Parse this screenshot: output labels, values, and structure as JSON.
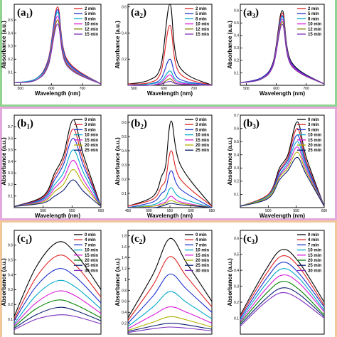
{
  "groups": [
    {
      "id": "a",
      "frame_color": "#8fd48f"
    },
    {
      "id": "b",
      "frame_color": "#e3a9dd"
    },
    {
      "id": "c",
      "frame_color": "#f2c89a"
    }
  ],
  "chart_data": [
    {
      "panel_label": "(a",
      "panel_sub": "1",
      "type": "line",
      "xlabel": "Wavelength (nm)",
      "ylabel": "Absorbance (a.u.)",
      "xlim": [
        480,
        760
      ],
      "ylim": [
        0,
        0.62
      ],
      "xticks": [
        500,
        600,
        700
      ],
      "yticks": [
        0.1,
        0.2,
        0.3,
        0.4,
        0.5
      ],
      "series": [
        {
          "name": "2 min",
          "color": "#e02020",
          "values": [
            0.02,
            0.05,
            0.2,
            0.6,
            0.2,
            0.01
          ]
        },
        {
          "name": "5 min",
          "color": "#1a2fd0",
          "values": [
            0.02,
            0.05,
            0.19,
            0.58,
            0.19,
            0.01
          ]
        },
        {
          "name": "8 min",
          "color": "#00a8cc",
          "values": [
            0.02,
            0.05,
            0.18,
            0.56,
            0.18,
            0.01
          ]
        },
        {
          "name": "10 min",
          "color": "#d81bd8",
          "values": [
            0.02,
            0.04,
            0.17,
            0.53,
            0.17,
            0.01
          ]
        },
        {
          "name": "12 min",
          "color": "#808000",
          "values": [
            0.02,
            0.04,
            0.16,
            0.5,
            0.16,
            0.01
          ]
        },
        {
          "name": "15 min",
          "color": "#7b2fbe",
          "values": [
            0.02,
            0.04,
            0.15,
            0.47,
            0.15,
            0.01
          ]
        }
      ],
      "x": [
        480,
        550,
        590,
        620,
        650,
        760
      ]
    },
    {
      "panel_label": "(a",
      "panel_sub": "2",
      "type": "line",
      "xlabel": "Wavelength (nm)",
      "ylabel": "Absorbance (a.u.)",
      "xlim": [
        480,
        760
      ],
      "ylim": [
        0,
        0.62
      ],
      "xticks": [
        500,
        600,
        700
      ],
      "yticks": [
        0.2,
        0.4,
        0.6
      ],
      "series": [
        {
          "name": "2 min",
          "color": "#e02020",
          "values": [
            0.01,
            0.02,
            0.1,
            0.46,
            0.1,
            0.0
          ]
        },
        {
          "name": "5 min",
          "color": "#1a2fd0",
          "values": [
            0.0,
            0.01,
            0.05,
            0.2,
            0.05,
            0.0
          ]
        },
        {
          "name": "8 min",
          "color": "#00a8cc",
          "values": [
            0.0,
            0.01,
            0.03,
            0.11,
            0.03,
            0.0
          ]
        },
        {
          "name": "10 min",
          "color": "#d81bd8",
          "values": [
            0.0,
            0.0,
            0.02,
            0.08,
            0.02,
            0.0
          ]
        },
        {
          "name": "12 min",
          "color": "#808000",
          "values": [
            0.0,
            0.0,
            0.01,
            0.05,
            0.01,
            0.0
          ]
        },
        {
          "name": "15 min",
          "color": "#7b2fbe",
          "values": [
            0.0,
            0.0,
            0.01,
            0.03,
            0.01,
            0.0
          ]
        }
      ],
      "extra_series": {
        "color": "#000000",
        "values": [
          0.01,
          0.04,
          0.15,
          0.62,
          0.15,
          0.0
        ]
      },
      "x": [
        480,
        550,
        590,
        620,
        650,
        760
      ]
    },
    {
      "panel_label": "(a",
      "panel_sub": "3",
      "type": "line",
      "xlabel": "Wavelength (nm)",
      "ylabel": "Absorbance (a.u.)",
      "xlim": [
        480,
        760
      ],
      "ylim": [
        0,
        0.65
      ],
      "xticks": [
        500,
        600,
        700
      ],
      "yticks": [
        0.1,
        0.2,
        0.3,
        0.4,
        0.5,
        0.6
      ],
      "series": [
        {
          "name": "2 min",
          "color": "#e02020",
          "values": [
            0.02,
            0.06,
            0.18,
            0.58,
            0.18,
            0.01
          ]
        },
        {
          "name": "5 min",
          "color": "#1a2fd0",
          "values": [
            0.02,
            0.06,
            0.18,
            0.56,
            0.18,
            0.01
          ]
        },
        {
          "name": "8 min",
          "color": "#00a8cc",
          "values": [
            0.02,
            0.05,
            0.17,
            0.55,
            0.17,
            0.01
          ]
        },
        {
          "name": "10 min",
          "color": "#d81bd8",
          "values": [
            0.02,
            0.05,
            0.17,
            0.53,
            0.17,
            0.01
          ]
        },
        {
          "name": "12 min",
          "color": "#808000",
          "values": [
            0.02,
            0.05,
            0.16,
            0.51,
            0.16,
            0.01
          ]
        },
        {
          "name": "15 min",
          "color": "#7b2fbe",
          "values": [
            0.02,
            0.05,
            0.16,
            0.49,
            0.16,
            0.01
          ]
        }
      ],
      "extra_series": {
        "color": "#000000",
        "values": [
          0.02,
          0.06,
          0.19,
          0.6,
          0.19,
          0.01
        ]
      },
      "x": [
        480,
        550,
        590,
        620,
        650,
        760
      ]
    },
    {
      "panel_label": "(b",
      "panel_sub": "1",
      "type": "line",
      "xlabel": "Wavelength (nm)",
      "ylabel": "Absorbance (a.u.)",
      "xlim": [
        450,
        600
      ],
      "ylim": [
        0,
        0.8
      ],
      "xticks": [
        500,
        550,
        600
      ],
      "yticks": [
        0.1,
        0.2,
        0.3,
        0.4,
        0.5,
        0.6,
        0.7
      ],
      "series": [
        {
          "name": "0 min",
          "color": "#000000",
          "values": [
            0.01,
            0.1,
            0.3,
            0.45,
            0.76,
            0.45,
            0.01
          ]
        },
        {
          "name": "3 min",
          "color": "#e02020",
          "values": [
            0.01,
            0.09,
            0.27,
            0.41,
            0.68,
            0.4,
            0.01
          ]
        },
        {
          "name": "5 min",
          "color": "#1a2fd0",
          "values": [
            0.01,
            0.08,
            0.24,
            0.37,
            0.6,
            0.36,
            0.01
          ]
        },
        {
          "name": "10 min",
          "color": "#00a8cc",
          "values": [
            0.01,
            0.07,
            0.2,
            0.3,
            0.5,
            0.3,
            0.01
          ]
        },
        {
          "name": "15 min",
          "color": "#d81bd8",
          "values": [
            0.01,
            0.06,
            0.17,
            0.25,
            0.41,
            0.24,
            0.01
          ]
        },
        {
          "name": "20 min",
          "color": "#b0b000",
          "values": [
            0.01,
            0.05,
            0.14,
            0.2,
            0.33,
            0.2,
            0.01
          ]
        },
        {
          "name": "25 min",
          "color": "#0b1c6e",
          "values": [
            0.01,
            0.04,
            0.1,
            0.15,
            0.24,
            0.14,
            0.01
          ]
        }
      ],
      "x": [
        450,
        500,
        520,
        535,
        552,
        570,
        600
      ]
    },
    {
      "panel_label": "(b",
      "panel_sub": "2",
      "type": "line",
      "xlabel": "Wavelength (nm)",
      "ylabel": "Absorbance (a.u.)",
      "xlim": [
        450,
        650
      ],
      "ylim": [
        0,
        0.65
      ],
      "xticks": [
        450,
        500,
        550,
        600,
        650
      ],
      "yticks": [
        0.1,
        0.2,
        0.3,
        0.4,
        0.5,
        0.6
      ],
      "series": [
        {
          "name": "0 min",
          "color": "#000000",
          "values": [
            0.01,
            0.08,
            0.22,
            0.3,
            0.61,
            0.3,
            0.01
          ]
        },
        {
          "name": "3 min",
          "color": "#e02020",
          "values": [
            0.01,
            0.06,
            0.15,
            0.2,
            0.4,
            0.2,
            0.01
          ]
        },
        {
          "name": "5 min",
          "color": "#1a2fd0",
          "values": [
            0.0,
            0.04,
            0.1,
            0.13,
            0.26,
            0.13,
            0.0
          ]
        },
        {
          "name": "10 min",
          "color": "#00a8cc",
          "values": [
            0.0,
            0.02,
            0.05,
            0.07,
            0.14,
            0.07,
            0.0
          ]
        },
        {
          "name": "15 min",
          "color": "#d81bd8",
          "values": [
            0.0,
            0.01,
            0.03,
            0.04,
            0.08,
            0.04,
            0.0
          ]
        },
        {
          "name": "20 min",
          "color": "#b0b000",
          "values": [
            0.0,
            0.01,
            0.02,
            0.03,
            0.05,
            0.03,
            0.0
          ]
        },
        {
          "name": "25 min",
          "color": "#0b1c6e",
          "values": [
            0.0,
            0.0,
            0.01,
            0.02,
            0.03,
            0.02,
            0.0
          ]
        }
      ],
      "x": [
        450,
        510,
        530,
        540,
        553,
        575,
        650
      ]
    },
    {
      "panel_label": "(b",
      "panel_sub": "3",
      "type": "line",
      "xlabel": "Wavelength (nm)",
      "ylabel": "Absorbance (a.u.)",
      "xlim": [
        450,
        600
      ],
      "ylim": [
        0,
        0.7
      ],
      "xticks": [
        500,
        550,
        600
      ],
      "yticks": [
        0.1,
        0.2,
        0.3,
        0.4,
        0.5,
        0.6,
        0.7
      ],
      "series": [
        {
          "name": "0 min",
          "color": "#000000",
          "values": [
            0.01,
            0.1,
            0.3,
            0.4,
            0.65,
            0.38,
            0.01
          ]
        },
        {
          "name": "3 min",
          "color": "#e02020",
          "values": [
            0.01,
            0.1,
            0.28,
            0.38,
            0.6,
            0.35,
            0.01
          ]
        },
        {
          "name": "5 min",
          "color": "#1a2fd0",
          "values": [
            0.01,
            0.09,
            0.27,
            0.36,
            0.55,
            0.33,
            0.01
          ]
        },
        {
          "name": "10 min",
          "color": "#00a8cc",
          "values": [
            0.01,
            0.09,
            0.25,
            0.34,
            0.5,
            0.31,
            0.01
          ]
        },
        {
          "name": "15 min",
          "color": "#d81bd8",
          "values": [
            0.01,
            0.08,
            0.24,
            0.32,
            0.46,
            0.29,
            0.01
          ]
        },
        {
          "name": "20 min",
          "color": "#b0b000",
          "values": [
            0.01,
            0.08,
            0.23,
            0.3,
            0.42,
            0.27,
            0.01
          ]
        },
        {
          "name": "25 min",
          "color": "#0b1c6e",
          "values": [
            0.01,
            0.07,
            0.21,
            0.28,
            0.38,
            0.25,
            0.01
          ]
        }
      ],
      "x": [
        450,
        500,
        520,
        535,
        552,
        568,
        600
      ]
    },
    {
      "panel_label": "(c",
      "panel_sub": "1",
      "type": "line",
      "xlabel": "",
      "ylabel": "Absorbance (a.u.)",
      "xlim": [
        0,
        1
      ],
      "ylim": [
        0,
        0.7
      ],
      "xticks": [],
      "yticks": [
        0.1,
        0.2,
        0.3,
        0.4,
        0.5,
        0.6
      ],
      "series": [
        {
          "name": "0 min",
          "color": "#000000",
          "values": [
            0.12,
            0.45,
            0.62,
            0.55,
            0.3
          ]
        },
        {
          "name": "4 min",
          "color": "#e02020",
          "values": [
            0.1,
            0.38,
            0.53,
            0.47,
            0.25
          ]
        },
        {
          "name": "7 min",
          "color": "#1a2fd0",
          "values": [
            0.09,
            0.32,
            0.44,
            0.39,
            0.21
          ]
        },
        {
          "name": "10 min",
          "color": "#00a8cc",
          "values": [
            0.07,
            0.26,
            0.36,
            0.32,
            0.17
          ]
        },
        {
          "name": "15 min",
          "color": "#d81bd8",
          "values": [
            0.06,
            0.21,
            0.29,
            0.26,
            0.14
          ]
        },
        {
          "name": "20 min",
          "color": "#008000",
          "values": [
            0.05,
            0.17,
            0.23,
            0.2,
            0.11
          ]
        },
        {
          "name": "25 min",
          "color": "#0b1c6e",
          "values": [
            0.04,
            0.13,
            0.18,
            0.16,
            0.09
          ]
        },
        {
          "name": "30 min",
          "color": "#7b2fbe",
          "values": [
            0.03,
            0.1,
            0.13,
            0.12,
            0.07
          ]
        }
      ],
      "x": [
        0.0,
        0.25,
        0.5,
        0.7,
        1.0
      ]
    },
    {
      "panel_label": "(c",
      "panel_sub": "2",
      "type": "line",
      "xlabel": "",
      "ylabel": "Absorbance (a.u.)",
      "xlim": [
        0,
        1
      ],
      "ylim": [
        0,
        1.9
      ],
      "xticks": [],
      "yticks": [
        0.2,
        0.4,
        0.6,
        0.8,
        1.0,
        1.2,
        1.4,
        1.6,
        1.8
      ],
      "series": [
        {
          "name": "0 min",
          "color": "#000000",
          "values": [
            0.3,
            1.1,
            1.75,
            1.3,
            0.6
          ]
        },
        {
          "name": "4 min",
          "color": "#e02020",
          "values": [
            0.25,
            0.9,
            1.42,
            1.05,
            0.5
          ]
        },
        {
          "name": "7 min",
          "color": "#1a2fd0",
          "values": [
            0.2,
            0.7,
            1.1,
            0.82,
            0.4
          ]
        },
        {
          "name": "10 min",
          "color": "#00a8cc",
          "values": [
            0.14,
            0.5,
            0.78,
            0.58,
            0.28
          ]
        },
        {
          "name": "15 min",
          "color": "#d81bd8",
          "values": [
            0.1,
            0.35,
            0.5,
            0.4,
            0.2
          ]
        },
        {
          "name": "20 min",
          "color": "#b0b000",
          "values": [
            0.07,
            0.22,
            0.32,
            0.26,
            0.13
          ]
        },
        {
          "name": "25 min",
          "color": "#0b1c6e",
          "values": [
            0.05,
            0.15,
            0.2,
            0.17,
            0.09
          ]
        },
        {
          "name": "30 min",
          "color": "#7b2fbe",
          "values": [
            0.03,
            0.1,
            0.13,
            0.11,
            0.06
          ]
        }
      ],
      "x": [
        0.0,
        0.3,
        0.5,
        0.7,
        1.0
      ]
    },
    {
      "panel_label": "(c",
      "panel_sub": "3",
      "type": "line",
      "xlabel": "",
      "ylabel": "Absorbance (a.u.)",
      "xlim": [
        0,
        1
      ],
      "ylim": [
        0,
        0.65
      ],
      "xticks": [],
      "yticks": [
        0.1,
        0.2,
        0.3,
        0.4,
        0.5,
        0.6
      ],
      "series": [
        {
          "name": "0 min",
          "color": "#000000",
          "values": [
            0.12,
            0.4,
            0.53,
            0.45,
            0.2
          ]
        },
        {
          "name": "4 min",
          "color": "#e02020",
          "values": [
            0.11,
            0.37,
            0.49,
            0.42,
            0.18
          ]
        },
        {
          "name": "7 min",
          "color": "#1a2fd0",
          "values": [
            0.1,
            0.34,
            0.45,
            0.38,
            0.17
          ]
        },
        {
          "name": "10 min",
          "color": "#00a8cc",
          "values": [
            0.09,
            0.31,
            0.41,
            0.35,
            0.15
          ]
        },
        {
          "name": "15 min",
          "color": "#d81bd8",
          "values": [
            0.08,
            0.28,
            0.37,
            0.32,
            0.14
          ]
        },
        {
          "name": "20 min",
          "color": "#008000",
          "values": [
            0.07,
            0.25,
            0.33,
            0.28,
            0.12
          ]
        },
        {
          "name": "25 min",
          "color": "#0b1c6e",
          "values": [
            0.06,
            0.22,
            0.29,
            0.25,
            0.11
          ]
        },
        {
          "name": "30 min",
          "color": "#7b2fbe",
          "values": [
            0.05,
            0.2,
            0.26,
            0.22,
            0.1
          ]
        }
      ],
      "x": [
        0.0,
        0.3,
        0.5,
        0.7,
        1.0
      ]
    }
  ]
}
